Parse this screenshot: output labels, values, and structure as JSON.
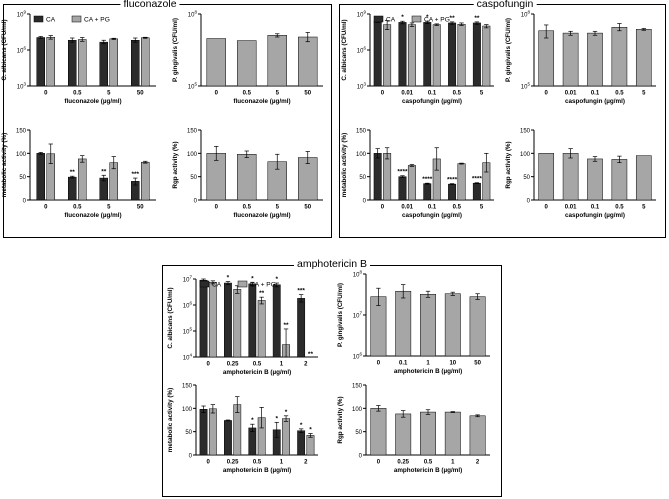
{
  "colors": {
    "CA": "#2b2b2b",
    "CAPG": "#a6a6a6",
    "single": "#a6a6a6"
  },
  "panels": [
    {
      "title": "fluconazole"
    },
    {
      "title": "caspofungin"
    },
    {
      "title": "amphotericin B"
    }
  ],
  "chart_data": [
    {
      "type": "bar",
      "title": "",
      "xlabel": "fluconazole (µg/ml)",
      "ylabel": "C. albicans (CFU/ml)",
      "yscale": "log",
      "ylim": [
        1000,
        1000000000
      ],
      "yticks": [
        {
          "v": 1000,
          "b": "10",
          "e": "3"
        },
        {
          "v": 1000000,
          "b": "10",
          "e": "6"
        },
        {
          "v": 1000000000,
          "b": "10",
          "e": "9"
        }
      ],
      "categories": [
        "0",
        "0.5",
        "5",
        "50"
      ],
      "legend": [
        "CA",
        "CA + PG"
      ],
      "series": [
        {
          "name": "CA",
          "values": [
            11000000.0,
            6500000.0,
            4500000.0,
            6500000.0
          ],
          "err_hi": [
            13500000.0,
            10000000.0,
            6500000.0,
            10000000.0
          ],
          "err_lo": [
            9000000.0,
            4500000.0,
            3300000.0,
            4500000.0
          ],
          "sig": [
            "",
            "",
            "",
            ""
          ]
        },
        {
          "name": "CA + PG",
          "values": [
            11500000.0,
            7500000.0,
            8500000.0,
            10500000.0
          ],
          "err_hi": [
            16000000.0,
            11000000.0,
            9500000.0,
            11500000.0
          ],
          "err_lo": [
            8000000.0,
            5300000.0,
            7500000.0,
            9500000.0
          ],
          "sig": [
            "",
            "",
            "",
            ""
          ]
        }
      ]
    },
    {
      "type": "bar",
      "title": "",
      "xlabel": "fluconazole (µg/ml)",
      "ylabel": "P. gingivalis (CFU/ml)",
      "yscale": "log",
      "ylim": [
        100000,
        100000000
      ],
      "yticks": [
        {
          "v": 100000,
          "b": "10",
          "e": "5"
        },
        {
          "v": 100000000,
          "b": "10",
          "e": "8"
        }
      ],
      "categories": [
        "0",
        "0.5",
        "5",
        "50"
      ],
      "series": [
        {
          "name": "P. gingivalis",
          "values": [
            9500000.0,
            7800000.0,
            13000000.0,
            11000000.0
          ],
          "err_hi": [
            null,
            null,
            15000000.0,
            17000000.0
          ],
          "err_lo": [
            null,
            null,
            11000000.0,
            7000000.0
          ],
          "sig": [
            "",
            "",
            "",
            ""
          ]
        }
      ]
    },
    {
      "type": "bar",
      "title": "",
      "xlabel": "fluconazole (µg/ml)",
      "ylabel": "metabolic activity (%)",
      "yscale": "linear",
      "ylim": [
        0,
        150
      ],
      "yticks": [
        {
          "v": 0,
          "t": "0"
        },
        {
          "v": 50,
          "t": "50"
        },
        {
          "v": 100,
          "t": "100"
        },
        {
          "v": 150,
          "t": "150"
        }
      ],
      "categories": [
        "0",
        "0.5",
        "5",
        "50"
      ],
      "series": [
        {
          "name": "CA",
          "values": [
            100,
            49,
            47,
            40
          ],
          "err_hi": [
            102,
            51,
            53,
            47
          ],
          "err_lo": [
            98,
            47,
            41,
            32
          ],
          "sig": [
            "",
            "**",
            "**",
            "***"
          ]
        },
        {
          "name": "CA + PG",
          "values": [
            99,
            88,
            80,
            81
          ],
          "err_hi": [
            120,
            95,
            93,
            83
          ],
          "err_lo": [
            78,
            81,
            67,
            79
          ],
          "sig": [
            "",
            "",
            "",
            ""
          ]
        }
      ]
    },
    {
      "type": "bar",
      "title": "",
      "xlabel": "fluconazole (µg/ml)",
      "ylabel": "Rgp activity (%)",
      "yscale": "linear",
      "ylim": [
        0,
        150
      ],
      "yticks": [
        {
          "v": 0,
          "t": "0"
        },
        {
          "v": 50,
          "t": "50"
        },
        {
          "v": 100,
          "t": "100"
        },
        {
          "v": 150,
          "t": "150"
        }
      ],
      "categories": [
        "0",
        "0.5",
        "5",
        "50"
      ],
      "series": [
        {
          "name": "Rgp",
          "values": [
            100,
            98,
            82,
            91
          ],
          "err_hi": [
            115,
            105,
            98,
            104
          ],
          "err_lo": [
            85,
            91,
            66,
            78
          ],
          "sig": [
            "",
            "",
            "",
            ""
          ]
        }
      ]
    },
    {
      "type": "bar",
      "title": "",
      "xlabel": "caspofungin (µg/ml)",
      "ylabel": "C. albicans (CFU/ml)",
      "yscale": "log",
      "ylim": [
        1000,
        1000000000
      ],
      "yticks": [
        {
          "v": 1000,
          "b": "10",
          "e": "3"
        },
        {
          "v": 1000000,
          "b": "10",
          "e": "6"
        },
        {
          "v": 1000000000,
          "b": "10",
          "e": "9"
        }
      ],
      "categories": [
        "0",
        "0.01",
        "0.1",
        "0.5",
        "5"
      ],
      "legend": [
        "CA",
        "CA + PG"
      ],
      "series": [
        {
          "name": "CA",
          "values": [
            250000000.0,
            200000000.0,
            200000000.0,
            180000000.0,
            180000000.0
          ],
          "err_hi": [
            320000000.0,
            250000000.0,
            250000000.0,
            220000000.0,
            220000000.0
          ],
          "err_lo": [
            200000000.0,
            150000000.0,
            160000000.0,
            140000000.0,
            140000000.0
          ],
          "sig": [
            "",
            "*",
            "*",
            "**",
            "**"
          ]
        },
        {
          "name": "CA + PG",
          "values": [
            130000000.0,
            130000000.0,
            130000000.0,
            140000000.0,
            100000000.0
          ],
          "err_hi": [
            280000000.0,
            180000000.0,
            150000000.0,
            180000000.0,
            130000000.0
          ],
          "err_lo": [
            50000000.0,
            90000000.0,
            110000000.0,
            110000000.0,
            70000000.0
          ],
          "sig": [
            "",
            "",
            "",
            "",
            ""
          ]
        }
      ]
    },
    {
      "type": "bar",
      "title": "",
      "xlabel": "caspofungin (µg/ml)",
      "ylabel": "P. gingivalis (CFU/ml)",
      "yscale": "log",
      "ylim": [
        100000,
        100000000
      ],
      "yticks": [
        {
          "v": 100000,
          "b": "10",
          "e": "5"
        },
        {
          "v": 100000000,
          "b": "10",
          "e": "8"
        }
      ],
      "categories": [
        "0",
        "0.01",
        "0.1",
        "0.5",
        "5"
      ],
      "series": [
        {
          "name": "P. gingivalis",
          "values": [
            20000000.0,
            16000000.0,
            16000000.0,
            28000000.0,
            23000000.0
          ],
          "err_hi": [
            35000000.0,
            19000000.0,
            19000000.0,
            40000000.0,
            25000000.0
          ],
          "err_lo": [
            10000000.0,
            13000000.0,
            13000000.0,
            20000000.0,
            21000000.0
          ],
          "sig": [
            "",
            "",
            "",
            "",
            ""
          ]
        }
      ]
    },
    {
      "type": "bar",
      "title": "",
      "xlabel": "caspofungin (µg/ml)",
      "ylabel": "metabolic activity (%)",
      "yscale": "linear",
      "ylim": [
        0,
        150
      ],
      "yticks": [
        {
          "v": 0,
          "t": "0"
        },
        {
          "v": 50,
          "t": "50"
        },
        {
          "v": 100,
          "t": "100"
        },
        {
          "v": 150,
          "t": "150"
        }
      ],
      "categories": [
        "0",
        "0.01",
        "0.1",
        "0.5",
        "5"
      ],
      "series": [
        {
          "name": "CA",
          "values": [
            100,
            50,
            35,
            34,
            36
          ],
          "err_hi": [
            110,
            52,
            36,
            35,
            37
          ],
          "err_lo": [
            90,
            48,
            34,
            33,
            35
          ],
          "sig": [
            "",
            "****",
            "****",
            "****",
            "****"
          ]
        },
        {
          "name": "CA + PG",
          "values": [
            100,
            74,
            88,
            78,
            80
          ],
          "err_hi": [
            112,
            76,
            112,
            79,
            100
          ],
          "err_lo": [
            88,
            72,
            64,
            77,
            60
          ],
          "sig": [
            "",
            "",
            "",
            "",
            ""
          ]
        }
      ]
    },
    {
      "type": "bar",
      "title": "",
      "xlabel": "caspofungin (µg/ml)",
      "ylabel": "Rgp activity (%)",
      "yscale": "linear",
      "ylim": [
        0,
        150
      ],
      "yticks": [
        {
          "v": 0,
          "t": "0"
        },
        {
          "v": 50,
          "t": "50"
        },
        {
          "v": 100,
          "t": "100"
        },
        {
          "v": 150,
          "t": "150"
        }
      ],
      "categories": [
        "0",
        "0.01",
        "0.1",
        "0.5",
        "5"
      ],
      "series": [
        {
          "name": "Rgp",
          "values": [
            100,
            100,
            88,
            87,
            95
          ],
          "err_hi": [
            null,
            110,
            93,
            94,
            null
          ],
          "err_lo": [
            null,
            90,
            83,
            80,
            null
          ],
          "sig": [
            "",
            "",
            "",
            "",
            ""
          ]
        }
      ]
    },
    {
      "type": "bar",
      "title": "",
      "xlabel": "amphotericin B (µg/ml)",
      "ylabel": "C. albicans (CFU/ml)",
      "yscale": "log",
      "ylim": [
        10000,
        10000000
      ],
      "yticks": [
        {
          "v": 10000,
          "b": "10",
          "e": "4"
        },
        {
          "v": 100000,
          "b": "10",
          "e": "5"
        },
        {
          "v": 1000000,
          "b": "10",
          "e": "6"
        },
        {
          "v": 10000000,
          "b": "10",
          "e": "7"
        }
      ],
      "categories": [
        "0",
        "0.25",
        "0.5",
        "1",
        "2"
      ],
      "legend": [
        "CA",
        "CA + PG"
      ],
      "series": [
        {
          "name": "CA",
          "values": [
            9000000.0,
            7000000.0,
            6500000.0,
            6000000.0,
            1800000.0
          ],
          "err_hi": [
            10000000.0,
            8000000.0,
            7500000.0,
            7000000.0,
            2500000.0
          ],
          "err_lo": [
            8000000.0,
            6000000.0,
            5500000.0,
            5000000.0,
            1300000.0
          ],
          "sig": [
            "",
            "*",
            "*",
            "*",
            "***"
          ]
        },
        {
          "name": "CA + PG",
          "values": [
            7500000.0,
            4000000.0,
            1500000.0,
            30000.0,
            null
          ],
          "err_hi": [
            8500000.0,
            5500000.0,
            2000000.0,
            120000.0,
            null
          ],
          "err_lo": [
            6500000.0,
            2800000.0,
            1100000.0,
            10000.0,
            null
          ],
          "sig": [
            "",
            "",
            "**",
            "**",
            "**"
          ]
        }
      ]
    },
    {
      "type": "bar",
      "title": "",
      "xlabel": "amphotericin B (µg/ml)",
      "ylabel": "P. gingivalis (CFU/ml)",
      "yscale": "log",
      "ylim": [
        1000000,
        100000000
      ],
      "yticks": [
        {
          "v": 1000000,
          "b": "10",
          "e": "6"
        },
        {
          "v": 10000000,
          "b": "10",
          "e": "7"
        },
        {
          "v": 100000000,
          "b": "10",
          "e": "8"
        }
      ],
      "categories": [
        "0",
        "0.1",
        "1",
        "10",
        "50"
      ],
      "series": [
        {
          "name": "P. gingivalis",
          "values": [
            28000000.0,
            38000000.0,
            32000000.0,
            33000000.0,
            28000000.0
          ],
          "err_hi": [
            45000000.0,
            55000000.0,
            38000000.0,
            36000000.0,
            33000000.0
          ],
          "err_lo": [
            17000000.0,
            26000000.0,
            27000000.0,
            30000000.0,
            24000000.0
          ],
          "sig": [
            "",
            "",
            "",
            "",
            ""
          ]
        }
      ]
    },
    {
      "type": "bar",
      "title": "",
      "xlabel": "amphotericin B (µg/ml)",
      "ylabel": "metabolic activity (%)",
      "yscale": "linear",
      "ylim": [
        0,
        150
      ],
      "yticks": [
        {
          "v": 0,
          "t": "0"
        },
        {
          "v": 50,
          "t": "50"
        },
        {
          "v": 100,
          "t": "100"
        },
        {
          "v": 150,
          "t": "150"
        }
      ],
      "categories": [
        "0",
        "0.25",
        "0.5",
        "1",
        "2"
      ],
      "series": [
        {
          "name": "CA",
          "values": [
            98,
            74,
            58,
            54,
            52
          ],
          "err_hi": [
            105,
            75,
            66,
            70,
            56
          ],
          "err_lo": [
            91,
            73,
            50,
            38,
            48
          ],
          "sig": [
            "",
            "",
            "*",
            "*",
            "*"
          ]
        },
        {
          "name": "CA + PG",
          "values": [
            99,
            108,
            80,
            78,
            42
          ],
          "err_hi": [
            108,
            125,
            102,
            84,
            46
          ],
          "err_lo": [
            90,
            91,
            58,
            72,
            38
          ],
          "sig": [
            "",
            "",
            "",
            "*",
            "*"
          ]
        }
      ]
    },
    {
      "type": "bar",
      "title": "",
      "xlabel": "amphotericin B (µg/ml)",
      "ylabel": "Rgp activity (%)",
      "yscale": "linear",
      "ylim": [
        0,
        150
      ],
      "yticks": [
        {
          "v": 0,
          "t": "0"
        },
        {
          "v": 50,
          "t": "50"
        },
        {
          "v": 100,
          "t": "100"
        },
        {
          "v": 150,
          "t": "150"
        }
      ],
      "categories": [
        "0",
        "0.25",
        "0.5",
        "1",
        "2"
      ],
      "series": [
        {
          "name": "Rgp",
          "values": [
            100,
            88,
            92,
            92,
            84
          ],
          "err_hi": [
            106,
            95,
            97,
            93,
            86
          ],
          "err_lo": [
            94,
            81,
            87,
            91,
            82
          ],
          "sig": [
            "",
            "",
            "",
            "",
            ""
          ]
        }
      ]
    }
  ]
}
